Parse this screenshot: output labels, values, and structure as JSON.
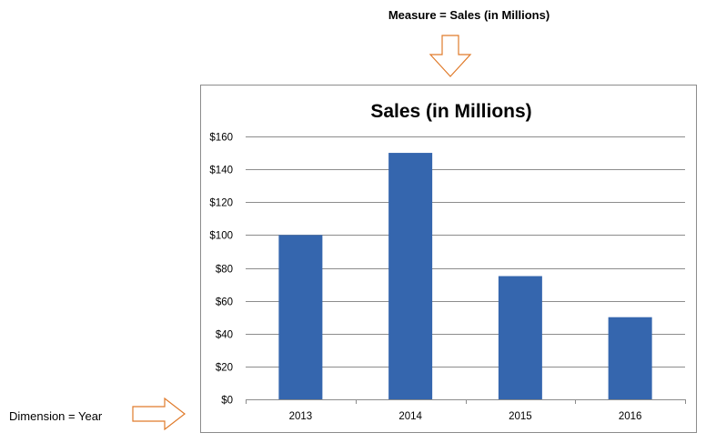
{
  "annotations": {
    "measure": "Measure = Sales (in Millions)",
    "dimension": "Dimension = Year"
  },
  "colors": {
    "bar": "#3566AE",
    "grid": "#8c8c8c",
    "arrow": "#E07B2B"
  },
  "chart_data": {
    "type": "bar",
    "title": "Sales (in Millions)",
    "xlabel": "",
    "ylabel": "",
    "categories": [
      "2013",
      "2014",
      "2015",
      "2016"
    ],
    "series": [
      {
        "values": [
          100,
          150,
          75,
          50
        ]
      }
    ],
    "ylim": [
      0,
      160
    ],
    "yticks": [
      0,
      20,
      40,
      60,
      80,
      100,
      120,
      140,
      160
    ],
    "ytick_labels": [
      "$0",
      "$20",
      "$40",
      "$60",
      "$80",
      "$100",
      "$120",
      "$140",
      "$160"
    ],
    "grid": true,
    "legend": "none"
  }
}
